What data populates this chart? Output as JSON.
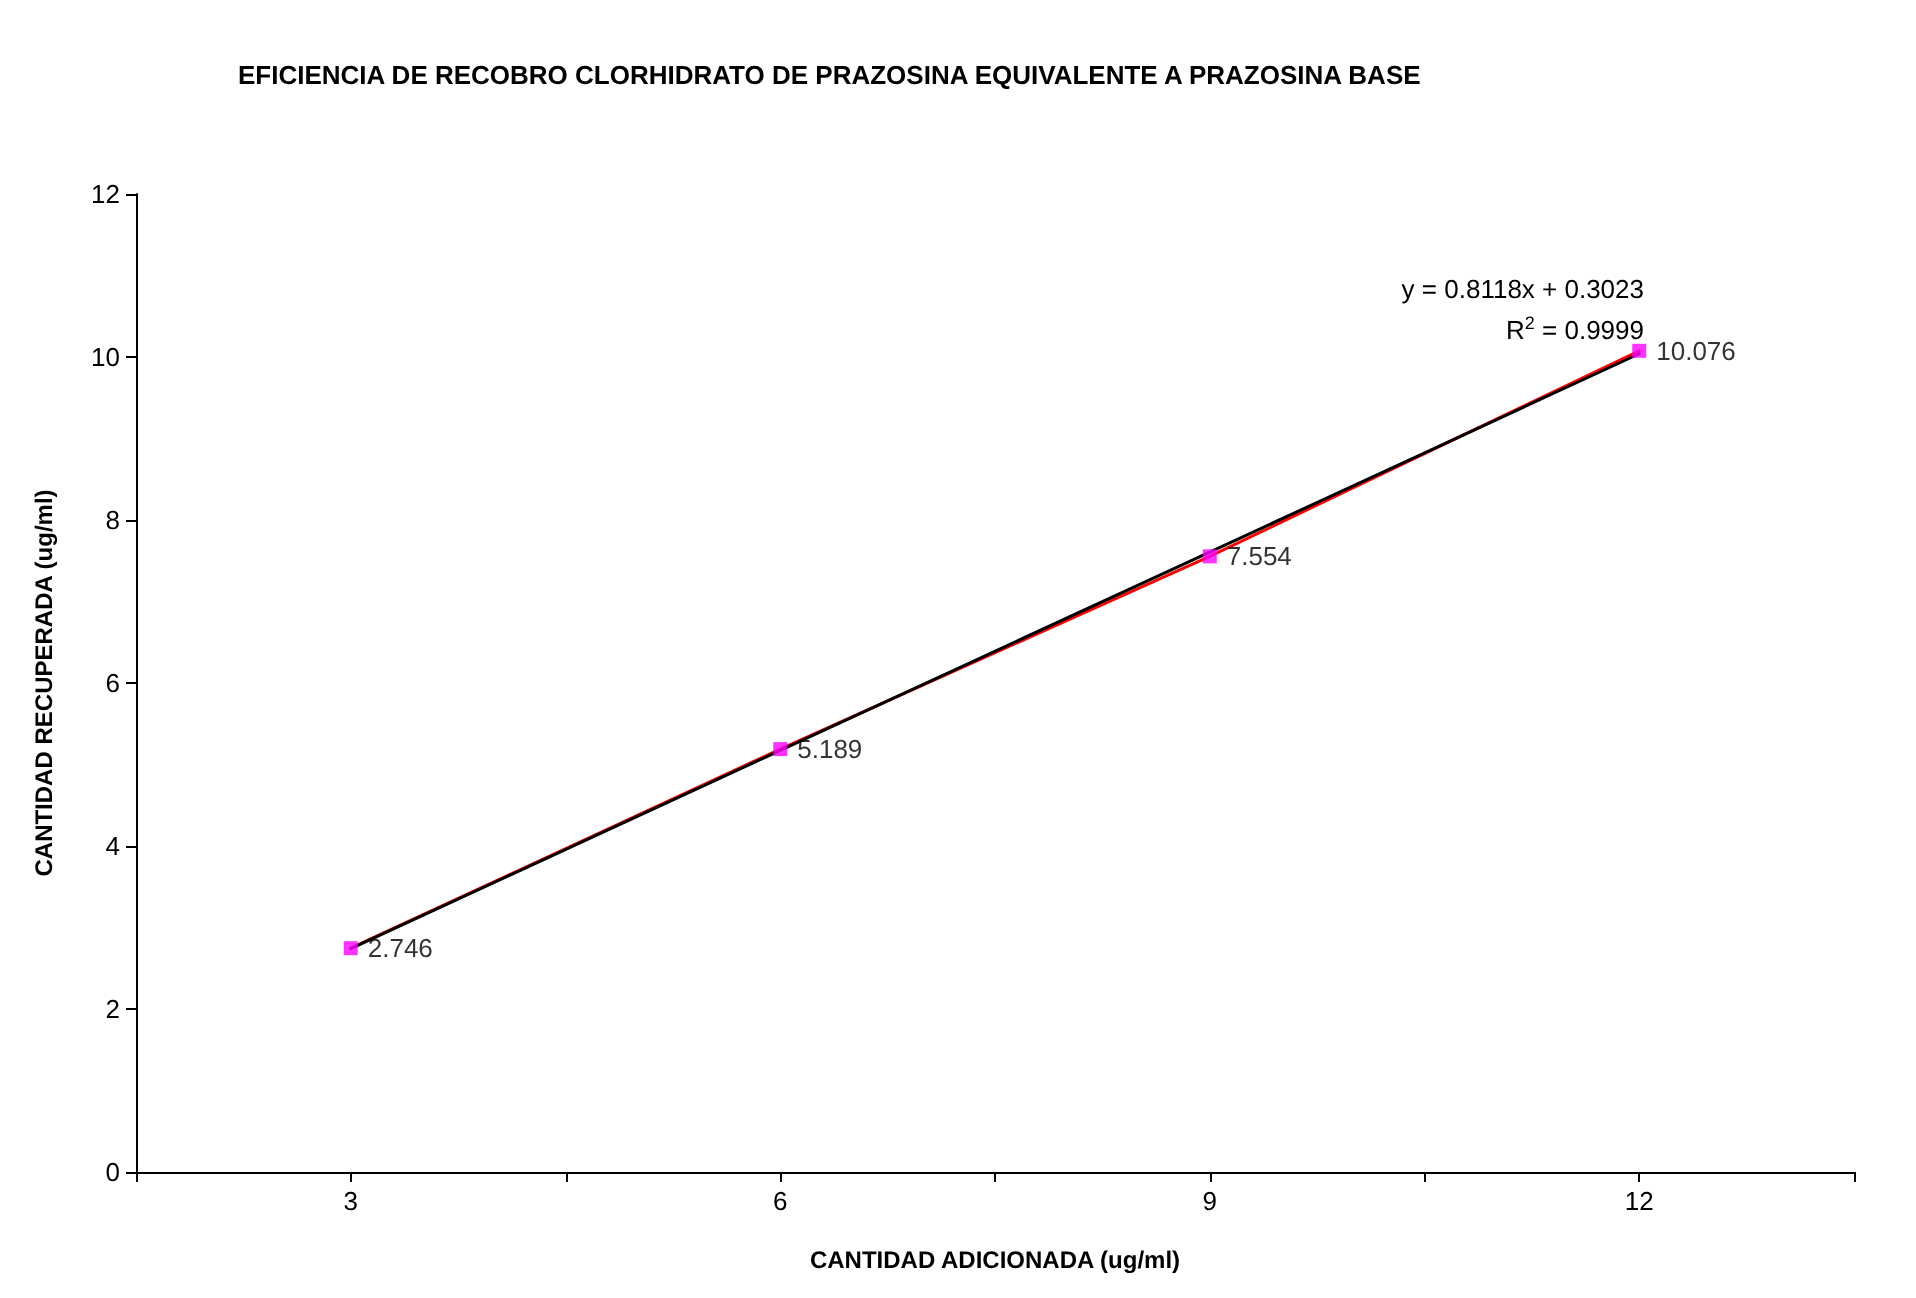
{
  "chart_data": {
    "type": "line",
    "title": "EFICIENCIA DE RECOBRO CLORHIDRATO DE PRAZOSINA EQUIVALENTE A PRAZOSINA BASE",
    "xlabel": "CANTIDAD ADICIONADA (ug/ml)",
    "ylabel": "CANTIDAD RECUPERADA (ug/ml)",
    "x": [
      3,
      6,
      9,
      12
    ],
    "series": [
      {
        "color": "#ff0000",
        "values": [
          2.746,
          5.189,
          7.554,
          10.076
        ]
      },
      {
        "type": "scatter",
        "color": "#ff00ff",
        "marker": "square",
        "values": [
          2.746,
          5.189,
          7.554,
          10.076
        ],
        "value_labels": [
          "2.746",
          "5.189",
          "7.554",
          "10.076"
        ]
      },
      {
        "type": "line",
        "color": "#000000",
        "x": [
          3,
          12
        ],
        "values": [
          2.74,
          10.04
        ]
      }
    ],
    "annotations": [
      "y = 0.8118x + 0.3023",
      "R$^{2}$ = 0.9999"
    ],
    "xlim": [
      1.5,
      13.5
    ],
    "xticks": [
      {
        "value": 1.5,
        "label": null
      },
      3,
      {
        "value": 4.5,
        "label": null
      },
      6,
      {
        "value": 7.5,
        "label": null
      },
      9,
      {
        "value": 10.5,
        "label": null
      },
      12,
      {
        "value": 13.5,
        "label": null
      }
    ],
    "ylim": [
      0,
      12
    ],
    "yticks": [
      0,
      2,
      4,
      6,
      8,
      10,
      12
    ],
    "grid": false,
    "marker": "none"
  }
}
